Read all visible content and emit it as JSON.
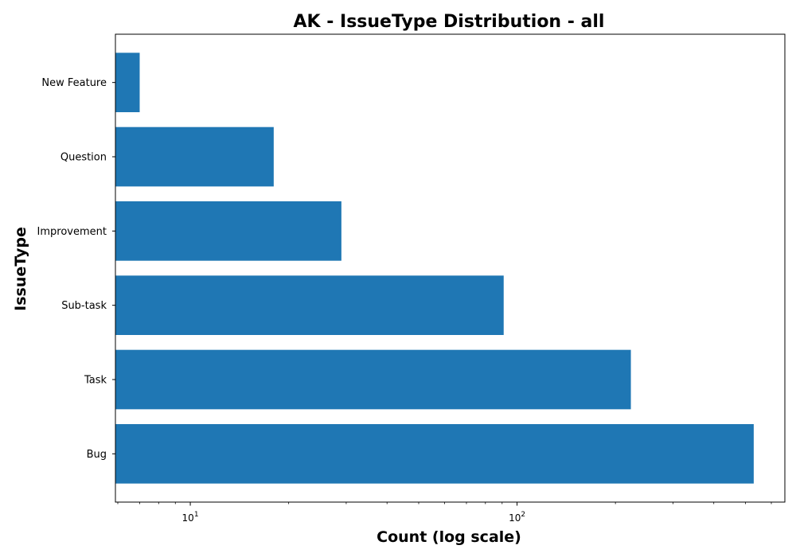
{
  "chart_data": {
    "type": "bar",
    "orientation": "horizontal",
    "title": "AK - IssueType Distribution - all",
    "xlabel": "Count (log scale)",
    "ylabel": "IssueType",
    "xscale": "log",
    "xlim": [
      5.9,
      660
    ],
    "categories": [
      "New Feature",
      "Question",
      "Improvement",
      "Sub-task",
      "Task",
      "Bug"
    ],
    "values": [
      7,
      18,
      29,
      91,
      223,
      530
    ],
    "x_major_ticks": [
      {
        "value": 10,
        "base": "10",
        "exp": "1"
      },
      {
        "value": 100,
        "base": "10",
        "exp": "2"
      }
    ],
    "grid": false,
    "legend": "none",
    "bar_color": "#1f77b4"
  }
}
